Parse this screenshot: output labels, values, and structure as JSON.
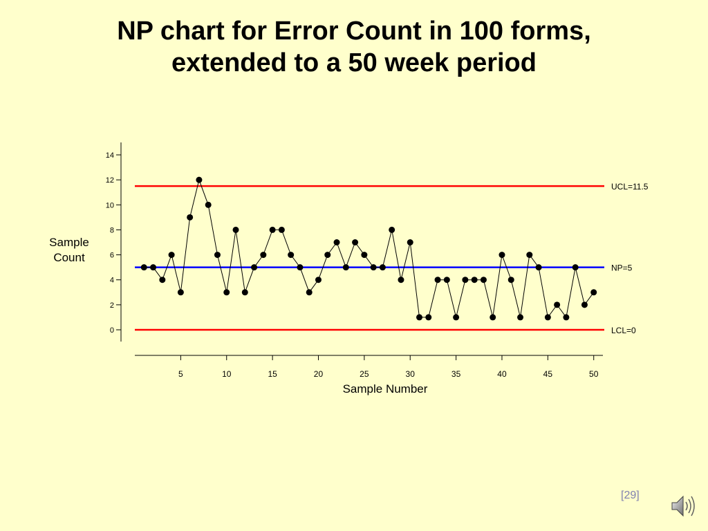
{
  "title_lines": [
    "NP chart for Error Count in 100 forms,",
    "extended to a 50 week period"
  ],
  "page_number": "[29]",
  "icon": "speaker-icon",
  "colors": {
    "background": "#ffffcc",
    "control_limit": "#ff0000",
    "center_line": "#0000ff",
    "data": "#000000",
    "page_number": "#8080b0"
  },
  "chart_data": {
    "type": "line",
    "xlabel": "Sample Number",
    "ylabel_lines": [
      "Sample",
      "Count"
    ],
    "x": [
      1,
      2,
      3,
      4,
      5,
      6,
      7,
      8,
      9,
      10,
      11,
      12,
      13,
      14,
      15,
      16,
      17,
      18,
      19,
      20,
      21,
      22,
      23,
      24,
      25,
      26,
      27,
      28,
      29,
      30,
      31,
      32,
      33,
      34,
      35,
      36,
      37,
      38,
      39,
      40,
      41,
      42,
      43,
      44,
      45,
      46,
      47,
      48,
      49,
      50
    ],
    "values": [
      5,
      5,
      4,
      6,
      3,
      9,
      12,
      10,
      6,
      3,
      8,
      3,
      5,
      6,
      8,
      8,
      6,
      5,
      3,
      4,
      6,
      7,
      5,
      7,
      6,
      5,
      5,
      8,
      4,
      7,
      1,
      1,
      4,
      4,
      1,
      4,
      4,
      4,
      1,
      6,
      4,
      1,
      6,
      5,
      1,
      2,
      1,
      5,
      2,
      3
    ],
    "xlim": [
      0,
      51
    ],
    "ylim": [
      0,
      14
    ],
    "xticks": [
      5,
      10,
      15,
      20,
      25,
      30,
      35,
      40,
      45,
      50
    ],
    "yticks": [
      0,
      2,
      4,
      6,
      8,
      10,
      12,
      14
    ],
    "reference_lines": [
      {
        "label": "UCL=11.5",
        "value": 11.5,
        "color": "#ff0000"
      },
      {
        "label": "NP=5",
        "value": 5,
        "color": "#0000ff"
      },
      {
        "label": "LCL=0",
        "value": 0,
        "color": "#ff0000"
      }
    ],
    "grid": false
  }
}
